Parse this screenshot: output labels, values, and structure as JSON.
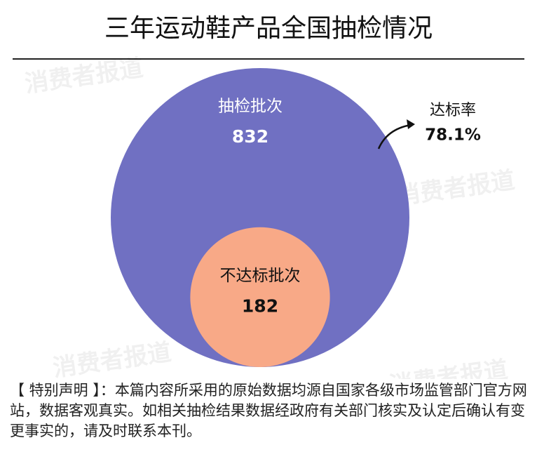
{
  "chart_data": {
    "type": "nested-circle",
    "title": "三年运动鞋产品全国抽检情况",
    "categories": [
      "抽检批次",
      "不达标批次"
    ],
    "values": [
      832,
      182
    ],
    "colors": [
      "#7070c2",
      "#f8a987"
    ],
    "rate": {
      "label": "达标率",
      "value": 78.1,
      "value_label": "78.1%"
    },
    "watermark": "消费者报道",
    "footnote": "【 特别声明 】：本篇内容所采用的原始数据均源自国家各级市场监管部门官方网站，数据客观真实。如相关抽检结果数据经政府有关部门核实及认定后确认有变更事实的，请及时联系本刊。"
  }
}
